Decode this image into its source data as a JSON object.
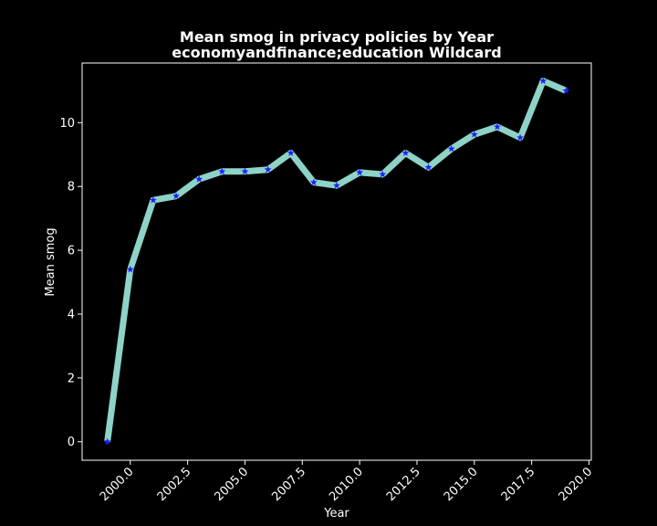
{
  "chart_data": {
    "type": "line",
    "title_lines": [
      "Mean smog in privacy policies by Year",
      "economyandfinance;education Wildcard"
    ],
    "xlabel": "Year",
    "ylabel": "Mean smog",
    "xlim": [
      1997.9,
      2020.1
    ],
    "ylim": [
      -0.58,
      11.87
    ],
    "x_ticks": [
      2000.0,
      2002.5,
      2005.0,
      2007.5,
      2010.0,
      2012.5,
      2015.0,
      2017.5,
      2020.0
    ],
    "x_tick_labels": [
      "2000.0",
      "2002.5",
      "2005.0",
      "2007.5",
      "2010.0",
      "2012.5",
      "2015.0",
      "2017.5",
      "2020.0"
    ],
    "y_ticks": [
      0,
      2,
      4,
      6,
      8,
      10
    ],
    "y_tick_labels": [
      "0",
      "2",
      "4",
      "6",
      "8",
      "10"
    ],
    "grid": false,
    "legend": "none",
    "line_color": "#8dd3c7",
    "marker_color": "#1f1fff",
    "marker": "star",
    "background": "#000000",
    "series": [
      {
        "x": [
          1999,
          2000,
          2001,
          2002,
          2003,
          2004,
          2005,
          2006,
          2007,
          2008,
          2009,
          2010,
          2011,
          2012,
          2013,
          2014,
          2015,
          2016,
          2017,
          2018,
          2019
        ],
        "values": [
          0.0,
          5.4,
          7.57,
          7.7,
          8.23,
          8.47,
          8.47,
          8.53,
          9.05,
          8.13,
          8.03,
          8.44,
          8.38,
          9.05,
          8.6,
          9.18,
          9.63,
          9.87,
          9.53,
          11.31,
          11.0
        ]
      }
    ]
  }
}
